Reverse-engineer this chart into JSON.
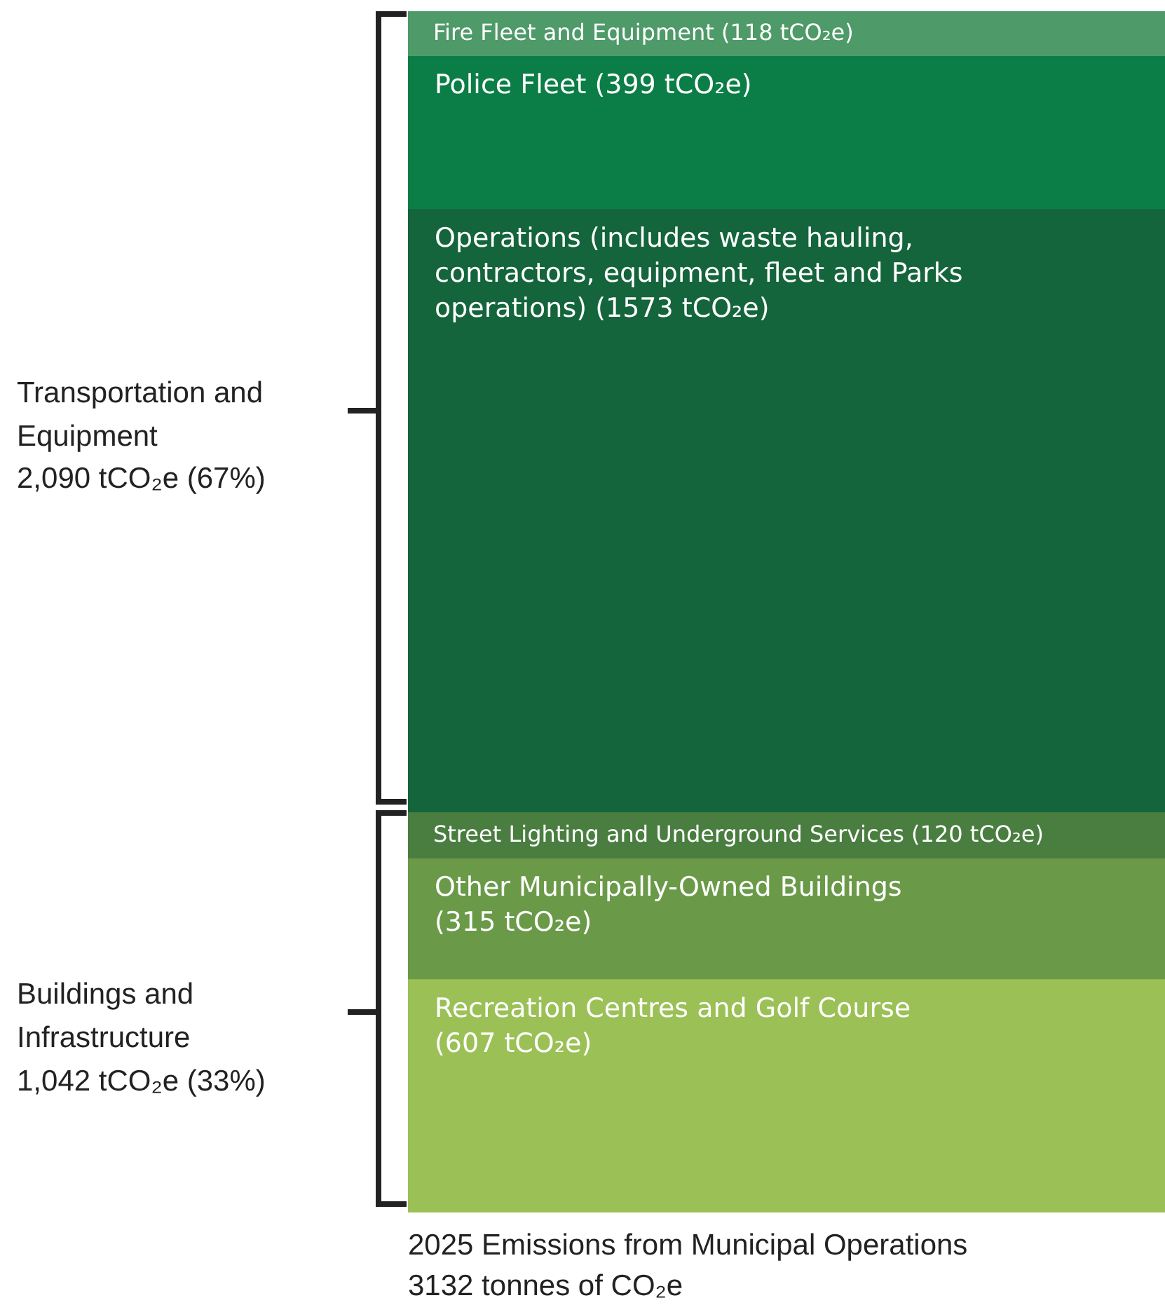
{
  "chart_data": {
    "type": "bar",
    "stacked": true,
    "title": "2025 Emissions from Municipal Operations",
    "subtitle": "3132 tonnes of CO₂e",
    "categories": [
      null
    ],
    "series": [
      {
        "name": "Recreation Centres and Golf Course",
        "color": "#9bc055",
        "values": [
          607
        ],
        "value_labels": [
          "(607 tCO₂e)"
        ]
      },
      {
        "name": "Other Municipally-Owned Buildings",
        "color": "#6a9a48",
        "values": [
          315
        ],
        "value_labels": [
          "(315 tCO₂e)"
        ]
      },
      {
        "name": "Street Lighting and Underground Services",
        "color": "#4a7e40",
        "values": [
          120
        ],
        "value_labels": [
          "(120 tCO₂e)"
        ]
      },
      {
        "name": "Operations (includes waste hauling, contractors, equipment, fleet and Parks operations)",
        "color": "#14643c",
        "values": [
          1573
        ],
        "value_labels": [
          "(1573 tCO₂e)"
        ]
      },
      {
        "name": "Police Fleet",
        "color": "#0b7d46",
        "values": [
          399
        ],
        "value_labels": [
          "(399 tCO₂e)"
        ]
      },
      {
        "name": "Fire Fleet and Equipment",
        "color": "#4e9a68",
        "values": [
          118
        ],
        "value_labels": [
          "(118 tCO₂e)"
        ]
      }
    ],
    "tick_labels": false,
    "legend": false,
    "annotations": [
      "Transportation and Equipment",
      "2,090 tCO₂e (67%)",
      "Buildings and Infrastructure",
      "1,042 tCO₂e (33%)"
    ]
  }
}
